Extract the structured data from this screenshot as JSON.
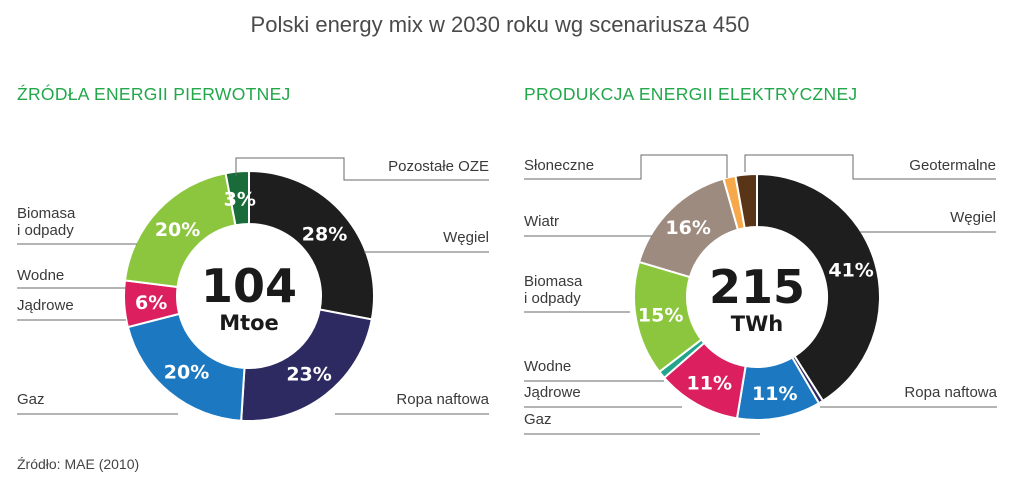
{
  "title": "Polski energy mix w 2030 roku wg scenariusza 450",
  "source": "Źródło: MAE (2010)",
  "chart_data": [
    {
      "type": "pie",
      "title": "ŹRÓDŁA ENERGII PIERWOTNEJ",
      "center_value": "104",
      "center_unit": "Mtoe",
      "slices": [
        {
          "name": "Węgiel",
          "value": 28,
          "label": "28%",
          "color": "#1e1e1e"
        },
        {
          "name": "Ropa naftowa",
          "value": 23,
          "label": "23%",
          "color": "#2d2a62"
        },
        {
          "name": "Gaz",
          "value": 20,
          "label": "20%",
          "color": "#1c79c1"
        },
        {
          "name": "Jądrowe",
          "value": 6,
          "label": "6%",
          "color": "#dc1f5e"
        },
        {
          "name": "Wodne",
          "value": 0,
          "label": "",
          "color": "#22a58b"
        },
        {
          "name": "Biomasa i odpady",
          "value": 20,
          "label": "20%",
          "color": "#8cc63f"
        },
        {
          "name": "Pozostałe OZE",
          "value": 3,
          "label": "3%",
          "color": "#1a6b3a"
        }
      ]
    },
    {
      "type": "pie",
      "title": "PRODUKCJA ENERGII ELEKTRYCZNEJ",
      "center_value": "215",
      "center_unit": "TWh",
      "slices": [
        {
          "name": "Węgiel",
          "value": 41,
          "label": "41%",
          "color": "#1e1e1e"
        },
        {
          "name": "Ropa naftowa",
          "value": 0.6,
          "label": "",
          "color": "#2d2a62"
        },
        {
          "name": "Gaz",
          "value": 11,
          "label": "11%",
          "color": "#1c79c1"
        },
        {
          "name": "Jądrowe",
          "value": 11,
          "label": "11%",
          "color": "#dc1f5e"
        },
        {
          "name": "Wodne",
          "value": 1,
          "label": "",
          "color": "#22a58b"
        },
        {
          "name": "Biomasa i odpady",
          "value": 15,
          "label": "15%",
          "color": "#8cc63f"
        },
        {
          "name": "Wiatr",
          "value": 16,
          "label": "16%",
          "color": "#9e8b7f"
        },
        {
          "name": "Słoneczne",
          "value": 1.6,
          "label": "",
          "color": "#f6a84a"
        },
        {
          "name": "Geotermalne",
          "value": 2.8,
          "label": "",
          "color": "#5a3416"
        }
      ]
    }
  ]
}
